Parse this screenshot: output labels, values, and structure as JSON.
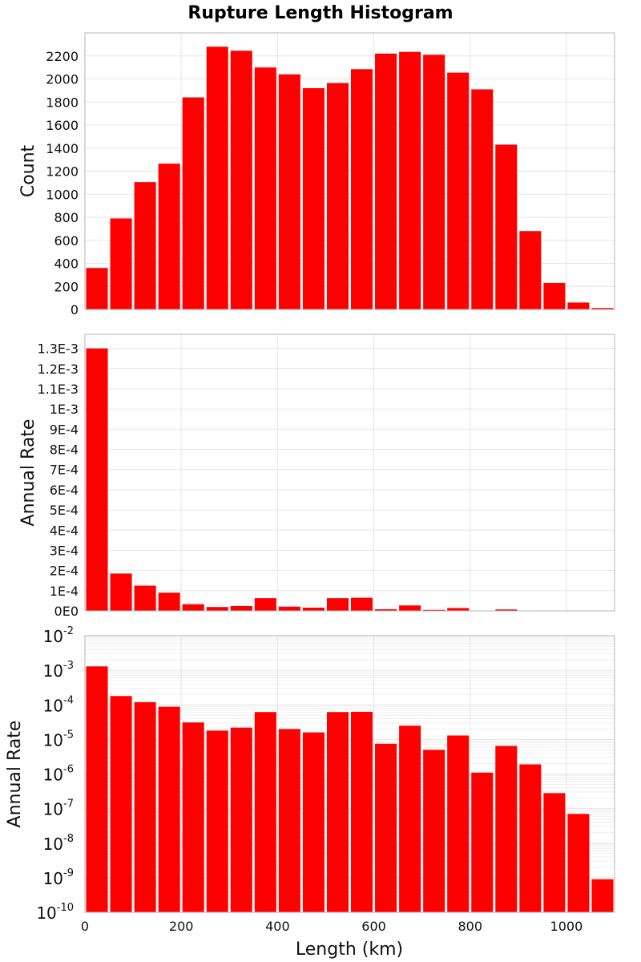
{
  "chart_data": {
    "title": "Rupture Length Histogram",
    "xlabel": "Length (km)",
    "xlim": [
      0,
      1100
    ],
    "x_ticks": [
      {
        "value": 0,
        "label": "0"
      },
      {
        "value": 200,
        "label": "200"
      },
      {
        "value": 400,
        "label": "400"
      },
      {
        "value": 600,
        "label": "600"
      },
      {
        "value": 800,
        "label": "800"
      },
      {
        "value": 1000,
        "label": "1000"
      }
    ],
    "bin_width": 50,
    "bin_centers": [
      25,
      75,
      125,
      175,
      225,
      275,
      325,
      375,
      425,
      475,
      525,
      575,
      625,
      675,
      725,
      775,
      825,
      875,
      925,
      975,
      1025,
      1075
    ],
    "panels": [
      {
        "type": "bar",
        "ylabel": "Count",
        "scale": "linear",
        "ylim": [
          0,
          2400
        ],
        "y_ticks": [
          {
            "value": 0,
            "label": "0"
          },
          {
            "value": 200,
            "label": "200"
          },
          {
            "value": 400,
            "label": "400"
          },
          {
            "value": 600,
            "label": "600"
          },
          {
            "value": 800,
            "label": "800"
          },
          {
            "value": 1000,
            "label": "1000"
          },
          {
            "value": 1200,
            "label": "1200"
          },
          {
            "value": 1400,
            "label": "1400"
          },
          {
            "value": 1600,
            "label": "1600"
          },
          {
            "value": 1800,
            "label": "1800"
          },
          {
            "value": 2000,
            "label": "2000"
          },
          {
            "value": 2200,
            "label": "2200"
          }
        ],
        "values": [
          360,
          790,
          1105,
          1265,
          1840,
          2280,
          2245,
          2100,
          2040,
          1920,
          1965,
          2085,
          2220,
          2235,
          2210,
          2055,
          1910,
          1430,
          680,
          230,
          60,
          12
        ]
      },
      {
        "type": "bar",
        "ylabel": "Annual Rate",
        "scale": "linear",
        "ylim": [
          0,
          0.00137
        ],
        "y_ticks": [
          {
            "value": 0,
            "label": "0E0"
          },
          {
            "value": 0.0001,
            "label": "1E-4"
          },
          {
            "value": 0.0002,
            "label": "2E-4"
          },
          {
            "value": 0.0003,
            "label": "3E-4"
          },
          {
            "value": 0.0004,
            "label": "4E-4"
          },
          {
            "value": 0.0005,
            "label": "5E-4"
          },
          {
            "value": 0.0006,
            "label": "6E-4"
          },
          {
            "value": 0.0007,
            "label": "7E-4"
          },
          {
            "value": 0.0008,
            "label": "8E-4"
          },
          {
            "value": 0.0009,
            "label": "9E-4"
          },
          {
            "value": 0.001,
            "label": "1E-3"
          },
          {
            "value": 0.0011,
            "label": "1.1E-3"
          },
          {
            "value": 0.0012,
            "label": "1.2E-3"
          },
          {
            "value": 0.0013,
            "label": "1.3E-3"
          }
        ],
        "values": [
          0.0013,
          0.000185,
          0.000125,
          9e-05,
          3.3e-05,
          1.9e-05,
          2.4e-05,
          6.3e-05,
          2.1e-05,
          1.6e-05,
          6.3e-05,
          6.5e-05,
          8e-06,
          2.7e-05,
          5e-06,
          1.4e-05,
          1e-06,
          7e-06,
          2e-06,
          3e-07,
          1e-07,
          1e-09
        ]
      },
      {
        "type": "bar",
        "ylabel": "Annual Rate",
        "scale": "log",
        "ylim": [
          1e-10,
          0.01
        ],
        "y_ticks": [
          {
            "value": 1e-10,
            "base": "10",
            "exp": "-10"
          },
          {
            "value": 1e-09,
            "base": "10",
            "exp": "-9"
          },
          {
            "value": 1e-08,
            "base": "10",
            "exp": "-8"
          },
          {
            "value": 1e-07,
            "base": "10",
            "exp": "-7"
          },
          {
            "value": 1e-06,
            "base": "10",
            "exp": "-6"
          },
          {
            "value": 1e-05,
            "base": "10",
            "exp": "-5"
          },
          {
            "value": 0.0001,
            "base": "10",
            "exp": "-4"
          },
          {
            "value": 0.001,
            "base": "10",
            "exp": "-3"
          },
          {
            "value": 0.01,
            "base": "10",
            "exp": "-2"
          }
        ],
        "values": [
          0.0013,
          0.00018,
          0.00012,
          8.8e-05,
          3.1e-05,
          1.8e-05,
          2.2e-05,
          6.2e-05,
          2e-05,
          1.6e-05,
          6.2e-05,
          6.3e-05,
          7.5e-06,
          2.5e-05,
          5e-06,
          1.3e-05,
          1.1e-06,
          6.5e-06,
          1.9e-06,
          2.8e-07,
          7e-08,
          9e-10
        ]
      }
    ],
    "colors": {
      "bar": "#ff0000",
      "grid": "#e6e6e6",
      "frame": "#b4b4b4"
    }
  }
}
